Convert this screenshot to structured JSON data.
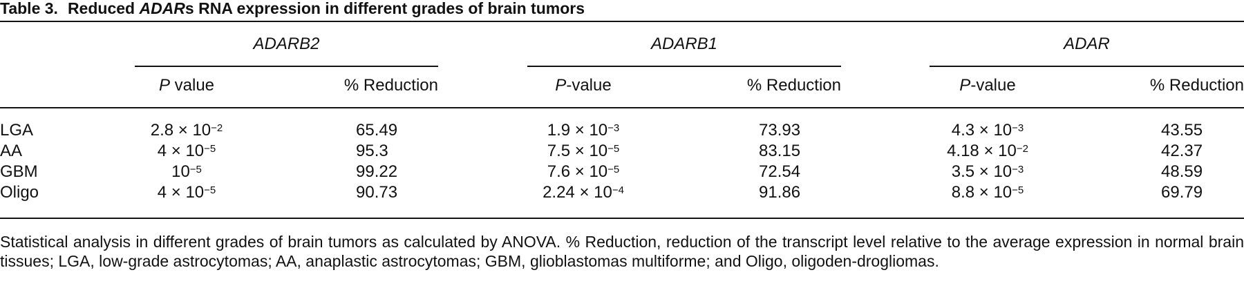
{
  "header": {
    "label": "Table 3.",
    "title": [
      {
        "text": "Reduced "
      },
      {
        "text": "ADAR",
        "italic": true
      },
      {
        "text": "s RNA expression in different grades of brain tumors"
      }
    ]
  },
  "table": {
    "groups": [
      "ADARB2",
      "ADARB1",
      "ADAR"
    ],
    "subheaders": [
      [
        [
          {
            "text": "P",
            "italic": true
          },
          {
            "text": " value"
          }
        ],
        [
          {
            "text": "% Reduction"
          }
        ]
      ],
      [
        [
          {
            "text": "P",
            "italic": true
          },
          {
            "text": "-value"
          }
        ],
        [
          {
            "text": "% Reduction"
          }
        ]
      ],
      [
        [
          {
            "text": "P",
            "italic": true
          },
          {
            "text": "-value"
          }
        ],
        [
          {
            "text": "% Reduction"
          }
        ]
      ]
    ],
    "rows": [
      {
        "label": "LGA",
        "cells": [
          {
            "base": "2.8 × 10",
            "exp": "−2"
          },
          65.49,
          {
            "base": "1.9 × 10",
            "exp": "−3"
          },
          73.93,
          {
            "base": "4.3 × 10",
            "exp": "−3"
          },
          43.55
        ]
      },
      {
        "label": "AA",
        "cells": [
          {
            "base": "4 × 10",
            "exp": "−5"
          },
          95.3,
          {
            "base": "7.5 × 10",
            "exp": "−5"
          },
          83.15,
          {
            "base": "4.18 × 10",
            "exp": "−2"
          },
          42.37
        ]
      },
      {
        "label": "GBM",
        "cells": [
          {
            "base": "10",
            "exp": "−5"
          },
          99.22,
          {
            "base": "7.6 × 10",
            "exp": "−5"
          },
          72.54,
          {
            "base": "3.5 × 10",
            "exp": "−3"
          },
          48.59
        ]
      },
      {
        "label": "Oligo",
        "cells": [
          {
            "base": "4 × 10",
            "exp": "−5"
          },
          90.73,
          {
            "base": "2.24 × 10",
            "exp": "−4"
          },
          91.86,
          {
            "base": "8.8 × 10",
            "exp": "−5"
          },
          69.79
        ]
      }
    ]
  },
  "footnote": "Statistical analysis in different grades of brain tumors as calculated by ANOVA. % Reduction, reduction of the transcript level relative to the average expression in normal brain tissues; LGA, low-grade astrocytomas; AA, anaplastic astrocytomas; GBM, glioblastomas multiforme; and Oligo, oligoden-drogliomas."
}
